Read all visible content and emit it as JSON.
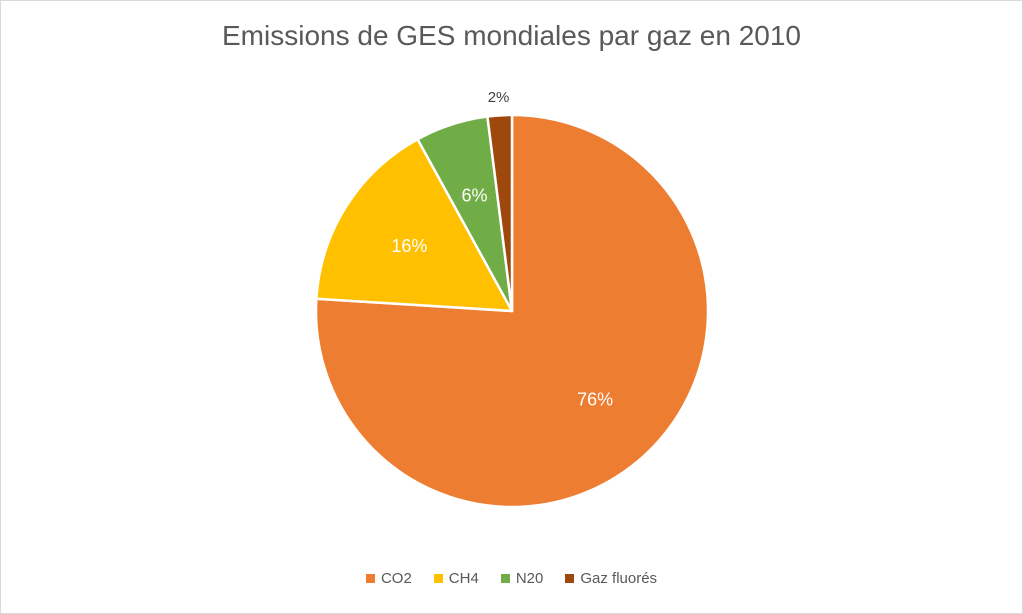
{
  "chart_data": {
    "type": "pie",
    "title": "Emissions de GES mondiales par gaz en 2010",
    "categories": [
      "CO2",
      "CH4",
      "N20",
      "Gaz fluorés"
    ],
    "values": [
      76,
      16,
      6,
      2
    ],
    "labels": [
      "76%",
      "16%",
      "6%",
      "2%"
    ],
    "colors": [
      "#ed7d31",
      "#ffc000",
      "#70ad47",
      "#9e480e"
    ],
    "label_colors": [
      "#ffffff",
      "#ffffff",
      "#ffffff",
      "#404040"
    ],
    "legend_position": "bottom"
  }
}
